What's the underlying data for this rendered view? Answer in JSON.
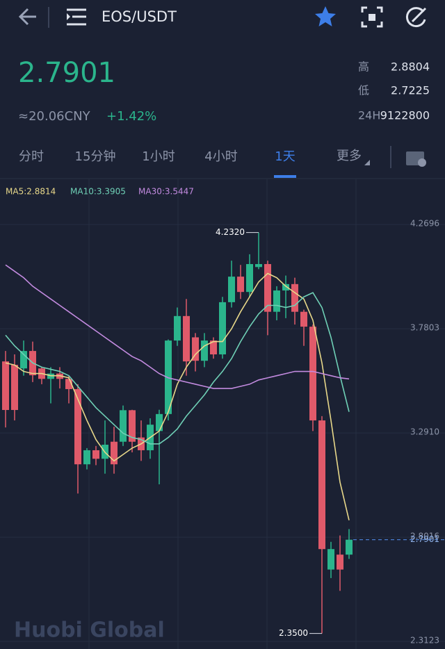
{
  "header": {
    "pair": "EOS/USDT"
  },
  "ticker": {
    "price": "2.7901",
    "cny": "≈20.06CNY",
    "change": "+1.42%",
    "stats": [
      {
        "label": "高",
        "value": "2.8804"
      },
      {
        "label": "低",
        "value": "2.7225"
      },
      {
        "label": "24H",
        "value": "9122800"
      }
    ]
  },
  "tabs": [
    "分时",
    "15分钟",
    "1小时",
    "4小时",
    "1天",
    "更多"
  ],
  "watermark": "Huobi Global",
  "chart_data": {
    "type": "candlestick",
    "up_color": "#2bb58c",
    "down_color": "#e05a6a",
    "ylim": [
      2.277,
      4.482
    ],
    "yticks": [
      4.2696,
      3.7803,
      {
        "value": 3.291,
        "label": "3.2910"
      },
      2.8016,
      2.3123
    ],
    "grid": true,
    "high_label": {
      "value": 4.232,
      "label": "4.2320"
    },
    "low_label": {
      "value": 2.35,
      "label": "2.3500"
    },
    "last_price": {
      "value": 2.7901,
      "label": "2.7901"
    },
    "open": [
      3.627,
      3.611,
      3.594,
      3.676,
      3.594,
      3.545,
      3.57,
      3.545,
      3.497,
      3.144,
      3.21,
      3.17,
      3.25,
      3.25,
      3.398,
      3.27,
      3.21,
      3.3,
      3.38,
      3.725,
      3.84,
      3.74,
      3.63,
      3.725,
      3.66,
      3.905,
      4.025,
      3.953,
      4.07,
      4.084,
      3.86,
      3.96,
      3.99,
      3.86,
      3.79,
      3.35,
      2.65,
      2.72,
      2.72
    ],
    "high": [
      3.676,
      3.66,
      3.725,
      3.72,
      3.6,
      3.6,
      3.6,
      3.56,
      3.52,
      3.22,
      3.23,
      3.35,
      3.32,
      3.42,
      3.4,
      3.35,
      3.36,
      3.4,
      3.73,
      3.88,
      3.92,
      3.76,
      3.76,
      3.74,
      3.93,
      4.1,
      4.08,
      4.13,
      4.232,
      4.1,
      3.98,
      4.03,
      4.02,
      3.87,
      3.8,
      3.37,
      2.78,
      2.81,
      2.84
    ],
    "low": [
      3.317,
      3.35,
      3.56,
      3.53,
      3.52,
      3.43,
      3.5,
      3.43,
      3.007,
      3.12,
      3.14,
      3.1,
      3.1,
      3.23,
      3.2,
      3.16,
      3.17,
      3.05,
      3.35,
      3.7,
      3.56,
      3.58,
      3.6,
      3.64,
      3.64,
      3.88,
      3.92,
      3.93,
      4.06,
      3.75,
      3.82,
      3.83,
      3.8,
      3.7,
      3.3,
      2.35,
      2.61,
      2.55,
      2.7
    ],
    "close": [
      3.399,
      3.399,
      3.676,
      3.562,
      3.545,
      3.57,
      3.545,
      3.497,
      3.144,
      3.21,
      3.17,
      3.236,
      3.144,
      3.398,
      3.25,
      3.21,
      3.33,
      3.38,
      3.725,
      3.84,
      3.627,
      3.63,
      3.725,
      3.66,
      3.905,
      4.025,
      3.953,
      4.084,
      4.084,
      3.86,
      3.96,
      3.99,
      3.86,
      3.79,
      3.35,
      2.746,
      2.746,
      2.65,
      2.7901
    ],
    "series": [
      {
        "name": "MA5:2.8814",
        "color": "#e8d88a",
        "values": [
          3.62,
          3.61,
          3.58,
          3.57,
          3.57,
          3.56,
          3.56,
          3.55,
          3.45,
          3.35,
          3.26,
          3.2,
          3.16,
          3.19,
          3.22,
          3.24,
          3.27,
          3.3,
          3.39,
          3.52,
          3.6,
          3.66,
          3.7,
          3.72,
          3.72,
          3.78,
          3.86,
          3.93,
          4.0,
          4.04,
          4.02,
          3.98,
          3.95,
          3.92,
          3.82,
          3.62,
          3.35,
          3.06,
          2.8814
        ]
      },
      {
        "name": "MA10:3.3905",
        "color": "#6fd0b6",
        "values": [
          3.75,
          3.7,
          3.66,
          3.62,
          3.6,
          3.59,
          3.58,
          3.56,
          3.51,
          3.46,
          3.41,
          3.37,
          3.33,
          3.29,
          3.27,
          3.26,
          3.24,
          3.24,
          3.27,
          3.31,
          3.37,
          3.42,
          3.47,
          3.53,
          3.58,
          3.64,
          3.72,
          3.79,
          3.85,
          3.89,
          3.89,
          3.88,
          3.89,
          3.93,
          3.95,
          3.88,
          3.74,
          3.56,
          3.3905
        ]
      },
      {
        "name": "MA30:3.5447",
        "color": "#c38be0",
        "values": [
          4.08,
          4.05,
          4.02,
          3.98,
          3.95,
          3.92,
          3.89,
          3.86,
          3.83,
          3.8,
          3.77,
          3.74,
          3.71,
          3.68,
          3.65,
          3.63,
          3.6,
          3.57,
          3.55,
          3.54,
          3.53,
          3.52,
          3.51,
          3.5,
          3.5,
          3.5,
          3.51,
          3.52,
          3.54,
          3.55,
          3.56,
          3.57,
          3.58,
          3.58,
          3.58,
          3.57,
          3.56,
          3.55,
          3.5447
        ]
      }
    ]
  }
}
